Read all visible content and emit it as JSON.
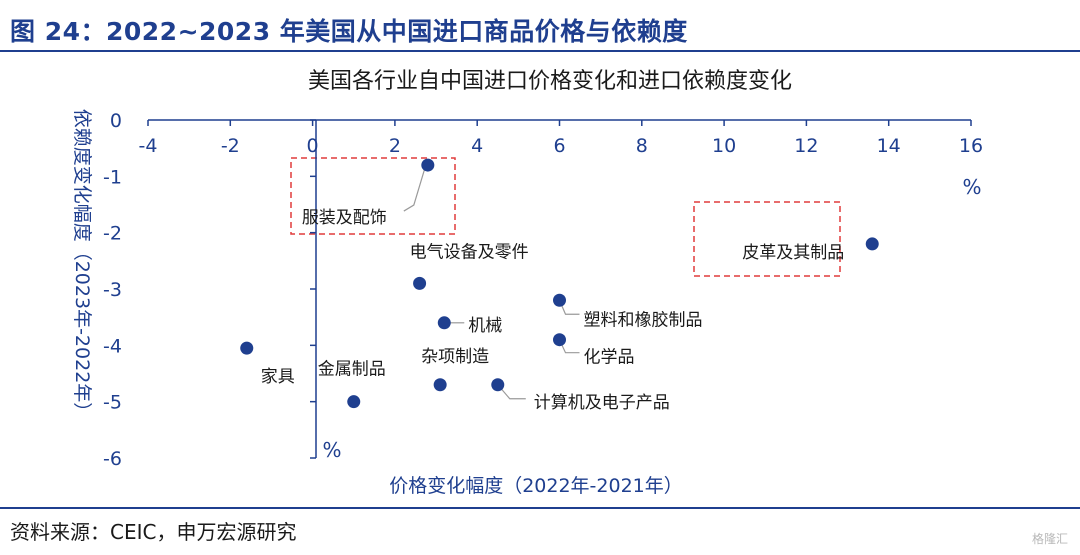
{
  "figure_title": "图 24：2022~2023 年美国从中国进口商品价格与依赖度",
  "source": "资料来源：CEIC，申万宏源研究",
  "watermark": "格隆汇",
  "chart_data": {
    "type": "scatter",
    "title": "美国各行业自中国进口价格变化和进口依赖度变化",
    "xlabel": "价格变化幅度（2022年-2021年）",
    "ylabel": "依赖度变化幅度（2023年-2022年）",
    "x_unit": "%",
    "y_unit": "%",
    "xlim": [
      -4,
      16
    ],
    "ylim": [
      -6,
      0
    ],
    "x_ticks": [
      -4,
      -2,
      0,
      2,
      4,
      6,
      8,
      10,
      12,
      14,
      16
    ],
    "y_ticks": [
      0,
      -1,
      -2,
      -3,
      -4,
      -5,
      -6
    ],
    "x_axis_position": "top",
    "grid": false,
    "legend": "none",
    "marker_color": "#1f3f8f",
    "points": [
      {
        "label": "服装及配饰",
        "x": 2.8,
        "y": -0.8
      },
      {
        "label": "皮革及其制品",
        "x": 13.6,
        "y": -2.2
      },
      {
        "label": "电气设备及零件",
        "x": 2.6,
        "y": -2.9
      },
      {
        "label": "塑料和橡胶制品",
        "x": 6.0,
        "y": -3.2
      },
      {
        "label": "机械",
        "x": 3.2,
        "y": -3.6
      },
      {
        "label": "化学品",
        "x": 6.0,
        "y": -3.9
      },
      {
        "label": "家具",
        "x": -1.6,
        "y": -4.05
      },
      {
        "label": "金属制品",
        "x": 1.0,
        "y": -5.0
      },
      {
        "label": "杂项制造",
        "x": 3.1,
        "y": -4.7
      },
      {
        "label": "计算机及电子产品",
        "x": 4.5,
        "y": -4.7
      }
    ],
    "highlighted": [
      "服装及配饰",
      "皮革及其制品"
    ]
  }
}
